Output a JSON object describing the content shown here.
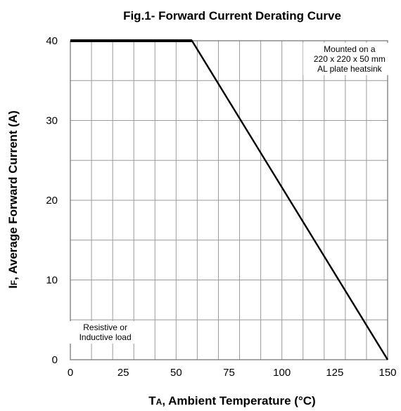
{
  "chart_data": {
    "type": "line",
    "title": "Fig.1- Forward Current Derating Curve",
    "xlabel_main": "T",
    "xlabel_sub": "A",
    "xlabel_rest": ", Ambient Temperature (°C)",
    "ylabel_main": "I",
    "ylabel_sub": "F",
    "ylabel_rest": ", Average Forward Current (A)",
    "xlim": [
      0,
      150
    ],
    "ylim": [
      0,
      40
    ],
    "xticks": [
      0,
      25,
      50,
      75,
      100,
      125,
      150
    ],
    "yticks": [
      0,
      10,
      20,
      30,
      40
    ],
    "grid": true,
    "x_minor_step": 10,
    "y_minor_step": 5,
    "series": [
      {
        "x": [
          0,
          57.5,
          150
        ],
        "y": [
          40,
          40,
          0
        ]
      }
    ],
    "annotations": [
      {
        "position": "top-right",
        "lines": [
          "Mounted on a",
          "220 x 220 x 50 mm",
          "AL plate heatsink"
        ]
      },
      {
        "position": "bottom-left",
        "lines": [
          "Resistive or",
          "Inductive load"
        ]
      }
    ]
  },
  "colors": {
    "line": "#000000",
    "grid": "#9a9a9a",
    "frame": "#6e6e6e"
  }
}
